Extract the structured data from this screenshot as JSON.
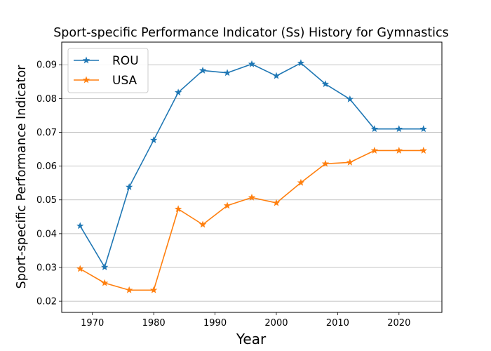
{
  "chart_data": {
    "type": "line",
    "title": "Sport-specific Performance Indicator (Ss) History for Gymnastics",
    "xlabel": "Year",
    "ylabel": "Sport-specific Performance Indicator",
    "xlim": [
      1965,
      2027
    ],
    "ylim": [
      0.0167,
      0.0967
    ],
    "xticks": [
      1970,
      1980,
      1990,
      2000,
      2010,
      2020
    ],
    "yticks": [
      0.02,
      0.03,
      0.04,
      0.05,
      0.06,
      0.07,
      0.08,
      0.09
    ],
    "ytick_labels": [
      "0.02",
      "0.03",
      "0.04",
      "0.05",
      "0.06",
      "0.07",
      "0.08",
      "0.09"
    ],
    "grid": "horizontal",
    "legend": "top-left",
    "marker": "star",
    "x": [
      1968,
      1972,
      1976,
      1980,
      1984,
      1988,
      1992,
      1996,
      2000,
      2004,
      2008,
      2012,
      2016,
      2020,
      2024
    ],
    "series": [
      {
        "name": "ROU",
        "color": "#1f77b4",
        "values": [
          0.0423,
          0.0301,
          0.0538,
          0.0677,
          0.0818,
          0.0883,
          0.0876,
          0.0902,
          0.0867,
          0.0905,
          0.0843,
          0.0798,
          0.071,
          0.071,
          0.071
        ]
      },
      {
        "name": "USA",
        "color": "#ff7f0e",
        "values": [
          0.0296,
          0.0254,
          0.0233,
          0.0233,
          0.0473,
          0.0427,
          0.0483,
          0.0507,
          0.0491,
          0.0551,
          0.0607,
          0.0611,
          0.0646,
          0.0646,
          0.0646
        ]
      }
    ]
  }
}
